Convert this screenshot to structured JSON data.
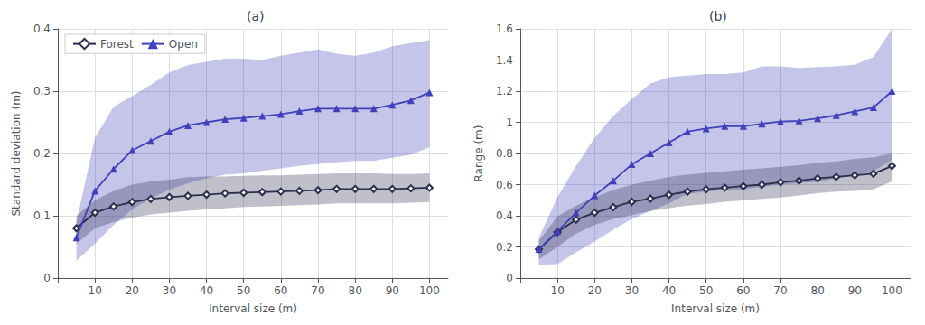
{
  "chart_data": [
    {
      "type": "line",
      "title": "(a)",
      "xlabel": "Interval size (m)",
      "ylabel": "Standard deviation (m)",
      "x": [
        5,
        10,
        15,
        20,
        25,
        30,
        35,
        40,
        45,
        50,
        55,
        60,
        65,
        70,
        75,
        80,
        85,
        90,
        95,
        100
      ],
      "xlim": [
        0,
        105
      ],
      "xticks": [
        {
          "value": 0,
          "label": null
        },
        10,
        20,
        30,
        40,
        50,
        60,
        70,
        80,
        90,
        100
      ],
      "ylim": [
        0,
        0.4
      ],
      "yticks": [
        0,
        0.1,
        0.2,
        0.3,
        0.4
      ],
      "grid": true,
      "legend": "upper left",
      "series": [
        {
          "name": "Forest",
          "color": "#2d2d4e",
          "marker": "diamond",
          "values": [
            0.08,
            0.105,
            0.115,
            0.122,
            0.127,
            0.13,
            0.132,
            0.134,
            0.136,
            0.137,
            0.138,
            0.139,
            0.14,
            0.141,
            0.143,
            0.143,
            0.143,
            0.143,
            0.144,
            0.145
          ],
          "upper": [
            0.1,
            0.125,
            0.14,
            0.15,
            0.155,
            0.158,
            0.162,
            0.163,
            0.163,
            0.164,
            0.165,
            0.165,
            0.166,
            0.167,
            0.168,
            0.168,
            0.168,
            0.167,
            0.167,
            0.168
          ],
          "lower": [
            0.055,
            0.08,
            0.09,
            0.097,
            0.102,
            0.105,
            0.108,
            0.11,
            0.112,
            0.114,
            0.115,
            0.116,
            0.117,
            0.118,
            0.12,
            0.12,
            0.12,
            0.12,
            0.121,
            0.122
          ]
        },
        {
          "name": "Open",
          "color": "#4040bb",
          "marker": "triangle",
          "values": [
            0.065,
            0.14,
            0.175,
            0.205,
            0.22,
            0.235,
            0.245,
            0.25,
            0.255,
            0.257,
            0.26,
            0.263,
            0.268,
            0.272,
            0.272,
            0.272,
            0.272,
            0.278,
            0.285,
            0.298
          ],
          "upper": [
            0.09,
            0.225,
            0.275,
            0.292,
            0.31,
            0.33,
            0.342,
            0.347,
            0.352,
            0.352,
            0.35,
            0.357,
            0.362,
            0.367,
            0.36,
            0.357,
            0.362,
            0.372,
            0.377,
            0.382
          ],
          "lower": [
            0.028,
            0.055,
            0.085,
            0.11,
            0.128,
            0.142,
            0.152,
            0.16,
            0.166,
            0.168,
            0.172,
            0.176,
            0.18,
            0.183,
            0.186,
            0.188,
            0.188,
            0.193,
            0.198,
            0.21
          ]
        }
      ]
    },
    {
      "type": "line",
      "title": "(b)",
      "xlabel": "Interval size (m)",
      "ylabel": "Range (m)",
      "x": [
        5,
        10,
        15,
        20,
        25,
        30,
        35,
        40,
        45,
        50,
        55,
        60,
        65,
        70,
        75,
        80,
        85,
        90,
        95,
        100
      ],
      "xlim": [
        0,
        105
      ],
      "xticks": [
        {
          "value": 0,
          "label": null
        },
        10,
        20,
        30,
        40,
        50,
        60,
        70,
        80,
        90,
        100
      ],
      "ylim": [
        0,
        1.6
      ],
      "yticks": [
        0,
        0.2,
        0.4,
        0.6,
        0.8,
        1,
        1.2,
        1.4,
        1.6
      ],
      "grid": true,
      "series": [
        {
          "name": "Forest",
          "color": "#2d2d4e",
          "marker": "diamond",
          "values": [
            0.185,
            0.295,
            0.375,
            0.42,
            0.455,
            0.49,
            0.51,
            0.535,
            0.555,
            0.57,
            0.58,
            0.59,
            0.6,
            0.615,
            0.625,
            0.64,
            0.65,
            0.66,
            0.67,
            0.72
          ],
          "upper": [
            0.24,
            0.395,
            0.465,
            0.52,
            0.565,
            0.6,
            0.625,
            0.65,
            0.665,
            0.675,
            0.685,
            0.695,
            0.705,
            0.715,
            0.725,
            0.74,
            0.75,
            0.765,
            0.775,
            0.8
          ],
          "lower": [
            0.12,
            0.2,
            0.285,
            0.34,
            0.38,
            0.405,
            0.43,
            0.45,
            0.465,
            0.475,
            0.49,
            0.498,
            0.508,
            0.518,
            0.53,
            0.545,
            0.555,
            0.56,
            0.57,
            0.62
          ]
        },
        {
          "name": "Open",
          "color": "#4040bb",
          "marker": "triangle",
          "values": [
            0.185,
            0.3,
            0.42,
            0.53,
            0.625,
            0.73,
            0.8,
            0.87,
            0.94,
            0.96,
            0.975,
            0.975,
            0.99,
            1.005,
            1.01,
            1.025,
            1.045,
            1.07,
            1.095,
            1.2
          ],
          "upper": [
            0.26,
            0.52,
            0.72,
            0.9,
            1.04,
            1.15,
            1.25,
            1.29,
            1.3,
            1.31,
            1.31,
            1.32,
            1.36,
            1.36,
            1.35,
            1.355,
            1.36,
            1.37,
            1.42,
            1.6
          ],
          "lower": [
            0.085,
            0.09,
            0.165,
            0.235,
            0.31,
            0.38,
            0.43,
            0.48,
            0.54,
            0.555,
            0.565,
            0.57,
            0.585,
            0.6,
            0.608,
            0.618,
            0.64,
            0.658,
            0.685,
            0.76
          ]
        }
      ]
    }
  ]
}
